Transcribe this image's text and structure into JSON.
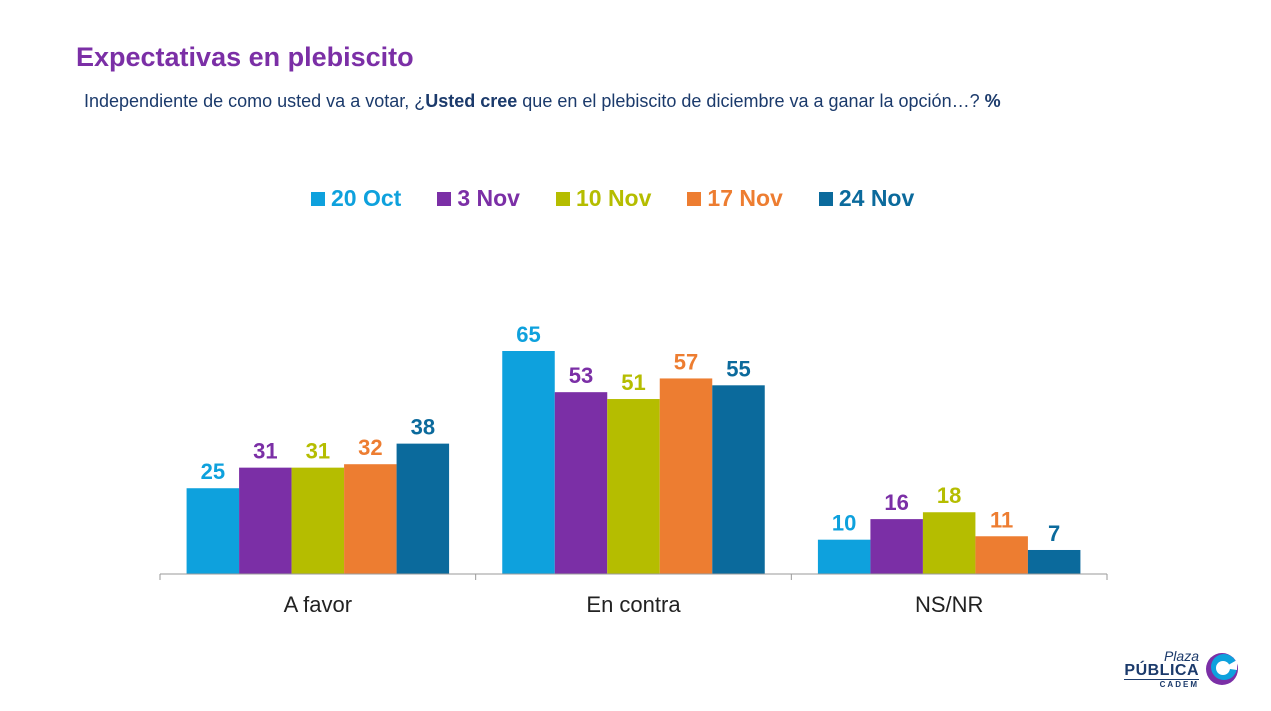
{
  "header": {
    "title": "Expectativas en plebiscito",
    "subtitle_pre": "Independiente de como usted va a votar, ¿",
    "subtitle_bold": "Usted cree",
    "subtitle_post": " que en el plebiscito de diciembre va a ganar la opción…? ",
    "subtitle_unit": "%"
  },
  "logo": {
    "line1": "Plaza",
    "line2": "PÚBLICA",
    "line3": "CADEM"
  },
  "chart_data": {
    "type": "bar",
    "categories": [
      "A favor",
      "En contra",
      "NS/NR"
    ],
    "series": [
      {
        "name": "20 Oct",
        "color": "#0ea1dd",
        "values": [
          25,
          65,
          10
        ]
      },
      {
        "name": "3 Nov",
        "color": "#7b2fa6",
        "values": [
          31,
          53,
          16
        ]
      },
      {
        "name": "10 Nov",
        "color": "#b5bd00",
        "values": [
          31,
          51,
          18
        ]
      },
      {
        "name": "17 Nov",
        "color": "#ed7d31",
        "values": [
          32,
          57,
          11
        ]
      },
      {
        "name": "24 Nov",
        "color": "#0b6a9c",
        "values": [
          38,
          55,
          7
        ]
      }
    ],
    "legend_position": "top-center",
    "grid": false,
    "ylim": [
      0,
      65
    ]
  }
}
